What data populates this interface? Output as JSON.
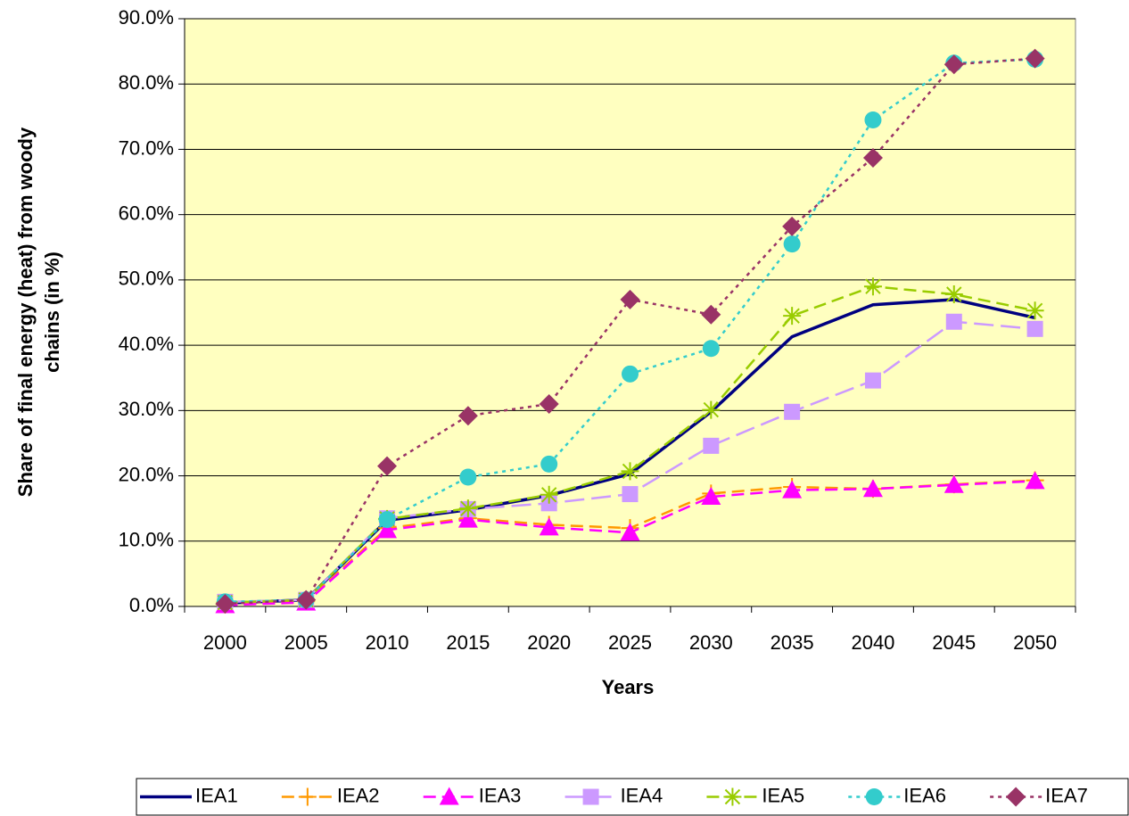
{
  "chart_data": {
    "type": "line",
    "x_label": "Years",
    "y_label": [
      "Share of final energy (heat) from woody",
      "chains (in %)"
    ],
    "categories": [
      "2000",
      "2005",
      "2010",
      "2015",
      "2020",
      "2025",
      "2030",
      "2035",
      "2040",
      "2045",
      "2050"
    ],
    "ylim": [
      0,
      90
    ],
    "yticks": [
      {
        "value": 0,
        "label": "0.0%"
      },
      {
        "value": 10,
        "label": "10.0%"
      },
      {
        "value": 20,
        "label": "20.0%"
      },
      {
        "value": 30,
        "label": "30.0%"
      },
      {
        "value": 40,
        "label": "40.0%"
      },
      {
        "value": 50,
        "label": "50.0%"
      },
      {
        "value": 60,
        "label": "60.0%"
      },
      {
        "value": 70,
        "label": "70.0%"
      },
      {
        "value": 80,
        "label": "80.0%"
      },
      {
        "value": 90,
        "label": "90.0%"
      }
    ],
    "grid": true,
    "legend": "bottom",
    "series": [
      {
        "name": "IEA1",
        "color": "#000080",
        "line_style": "solid",
        "marker": "none",
        "values": [
          0.5,
          1.0,
          13.2,
          14.8,
          17.0,
          20.3,
          29.8,
          41.3,
          46.2,
          47.0,
          44.2
        ]
      },
      {
        "name": "IEA2",
        "color": "#ff9900",
        "line_style": "dashed",
        "marker": "plus",
        "values": [
          0.3,
          0.8,
          12.0,
          13.5,
          12.5,
          12.0,
          17.3,
          18.3,
          18.0,
          18.7,
          19.3
        ]
      },
      {
        "name": "IEA3",
        "color": "#ff00ff",
        "line_style": "dashed",
        "marker": "triangle",
        "values": [
          0.2,
          0.6,
          11.7,
          13.3,
          12.1,
          11.3,
          16.8,
          17.8,
          18.0,
          18.6,
          19.2
        ]
      },
      {
        "name": "IEA4",
        "color": "#cc99ff",
        "line_style": "longdash",
        "marker": "square",
        "values": [
          0.7,
          1.0,
          13.5,
          14.9,
          15.8,
          17.2,
          24.6,
          29.8,
          34.6,
          43.6,
          42.5
        ]
      },
      {
        "name": "IEA5",
        "color": "#99cc00",
        "line_style": "dashed",
        "marker": "asterisk",
        "values": [
          0.6,
          1.0,
          13.4,
          15.0,
          17.1,
          20.7,
          30.1,
          44.5,
          49.0,
          47.8,
          45.3
        ]
      },
      {
        "name": "IEA6",
        "color": "#33cccc",
        "line_style": "dotted",
        "marker": "circle",
        "values": [
          0.7,
          1.0,
          13.3,
          19.8,
          21.8,
          35.6,
          39.5,
          55.5,
          74.5,
          83.2,
          83.8
        ]
      },
      {
        "name": "IEA7",
        "color": "#993366",
        "line_style": "dotted",
        "marker": "diamond",
        "values": [
          0.4,
          1.0,
          21.5,
          29.2,
          31.0,
          47.0,
          44.7,
          58.2,
          68.7,
          83.0,
          83.9
        ]
      }
    ]
  }
}
